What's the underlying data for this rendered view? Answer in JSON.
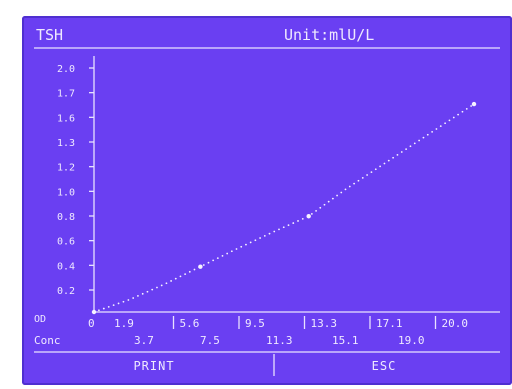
{
  "header": {
    "assay": "TSH",
    "unit": "Unit:mlU/L"
  },
  "chart_data": {
    "type": "scatter",
    "y_axis_label": "OD",
    "x_axis_label": "Conc",
    "y_ticks": [
      "2.0",
      "1.7",
      "1.6",
      "1.3",
      "1.2",
      "1.0",
      "0.8",
      "0.6",
      "0.4",
      "0.2"
    ],
    "ylim": [
      0,
      2.0
    ],
    "x_top_row": [
      "0",
      "1.9",
      "5.6",
      "9.5",
      "13.3",
      "17.1",
      "20.0"
    ],
    "x_bottom_row": [
      "3.7",
      "7.5",
      "11.3",
      "15.1",
      "19.0"
    ],
    "xlim": [
      0,
      20.0
    ],
    "points": [
      {
        "x": 0,
        "y": 0.0
      },
      {
        "x": 5.6,
        "y": 0.36
      },
      {
        "x": 11.3,
        "y": 0.76
      },
      {
        "x": 20.0,
        "y": 1.65
      }
    ],
    "curve": [
      {
        "x": 0,
        "y": 0.0
      },
      {
        "x": 1.9,
        "y": 0.1
      },
      {
        "x": 3.7,
        "y": 0.22
      },
      {
        "x": 5.6,
        "y": 0.36
      },
      {
        "x": 7.5,
        "y": 0.5
      },
      {
        "x": 9.5,
        "y": 0.64
      },
      {
        "x": 11.3,
        "y": 0.76
      },
      {
        "x": 13.3,
        "y": 0.98
      },
      {
        "x": 15.1,
        "y": 1.16
      },
      {
        "x": 17.1,
        "y": 1.36
      },
      {
        "x": 19.0,
        "y": 1.55
      },
      {
        "x": 20.0,
        "y": 1.65
      }
    ]
  },
  "buttons": {
    "print": "PRINT",
    "esc": "ESC"
  }
}
